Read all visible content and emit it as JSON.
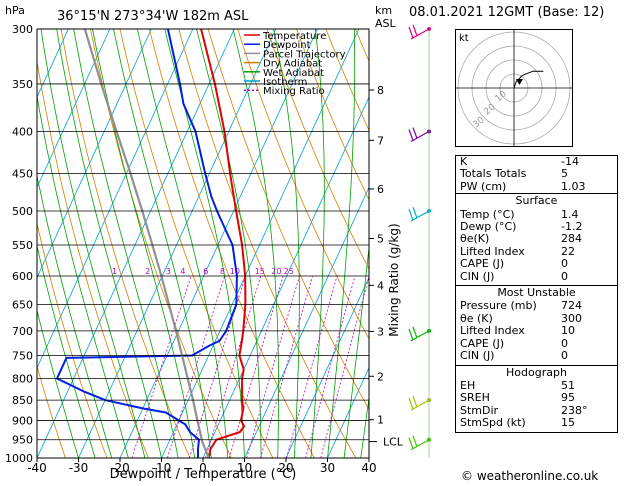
{
  "header": {
    "location": "36°15'N 273°34'W 182m ASL",
    "date": "08.01.2021 12GMT (Base: 12)",
    "hpa_label": "hPa",
    "km_label": "km",
    "asl_label": "ASL"
  },
  "legend": [
    {
      "label": "Temperature",
      "color": "#e00000",
      "dash": ""
    },
    {
      "label": "Dewpoint",
      "color": "#0020e0",
      "dash": ""
    },
    {
      "label": "Parcel Trajectory",
      "color": "#909090",
      "dash": ""
    },
    {
      "label": "Dry Adiabat",
      "color": "#d08000",
      "dash": ""
    },
    {
      "label": "Wet Adiabat",
      "color": "#00a000",
      "dash": ""
    },
    {
      "label": "Isotherm",
      "color": "#00a0d0",
      "dash": ""
    },
    {
      "label": "Mixing Ratio",
      "color": "#c000c0",
      "dash": "2,2"
    }
  ],
  "chart_data": {
    "type": "line",
    "xlabel": "Dewpoint / Temperature (°C)",
    "ylabel": "Mixing Ratio (g/kg)",
    "xlim": [
      -40,
      40
    ],
    "pressure_levels": [
      300,
      350,
      400,
      450,
      500,
      550,
      600,
      650,
      700,
      750,
      800,
      850,
      900,
      950,
      1000
    ],
    "x_ticks": [
      -40,
      -30,
      -20,
      -10,
      0,
      10,
      20,
      30,
      40
    ],
    "km_ticks": [
      {
        "km": "8",
        "p": 356
      },
      {
        "km": "7",
        "p": 410
      },
      {
        "km": "6",
        "p": 470
      },
      {
        "km": "5",
        "p": 540
      },
      {
        "km": "4",
        "p": 616
      },
      {
        "km": "3",
        "p": 701
      },
      {
        "km": "2",
        "p": 795
      },
      {
        "km": "1",
        "p": 898
      }
    ],
    "lcl": {
      "label": "LCL",
      "p": 955
    },
    "mixing_ratio_labels": [
      {
        "label": "1",
        "p": 600,
        "t": -41.5
      },
      {
        "label": "2",
        "p": 600,
        "t": -33.5
      },
      {
        "label": "3",
        "p": 600,
        "t": -28.5
      },
      {
        "label": "4",
        "p": 600,
        "t": -25
      },
      {
        "label": "6",
        "p": 600,
        "t": -19.5
      },
      {
        "label": "8",
        "p": 600,
        "t": -15.5
      },
      {
        "label": "10",
        "p": 600,
        "t": -12.5
      },
      {
        "label": "15",
        "p": 600,
        "t": -6.5
      },
      {
        "label": "20",
        "p": 600,
        "t": -2.5
      },
      {
        "label": "25",
        "p": 600,
        "t": 0.5
      }
    ],
    "series": [
      {
        "name": "Temperature",
        "color": "#e00000",
        "points": [
          [
            1000,
            1.4
          ],
          [
            975,
            0.8
          ],
          [
            950,
            1.2
          ],
          [
            930,
            6
          ],
          [
            915,
            6.4
          ],
          [
            900,
            5
          ],
          [
            870,
            4.2
          ],
          [
            850,
            3
          ],
          [
            800,
            0.6
          ],
          [
            780,
            0
          ],
          [
            750,
            -2.6
          ],
          [
            720,
            -3.6
          ],
          [
            700,
            -4.4
          ],
          [
            650,
            -6.8
          ],
          [
            600,
            -10
          ],
          [
            550,
            -14.2
          ],
          [
            500,
            -19.4
          ],
          [
            450,
            -25
          ],
          [
            400,
            -31
          ],
          [
            350,
            -38.6
          ],
          [
            300,
            -48
          ]
        ]
      },
      {
        "name": "Dewpoint",
        "color": "#0020e0",
        "points": [
          [
            1000,
            -1.2
          ],
          [
            975,
            -2.2
          ],
          [
            950,
            -3
          ],
          [
            930,
            -6
          ],
          [
            910,
            -8
          ],
          [
            900,
            -10
          ],
          [
            880,
            -14
          ],
          [
            870,
            -20
          ],
          [
            850,
            -30
          ],
          [
            830,
            -36
          ],
          [
            800,
            -44
          ],
          [
            770,
            -44
          ],
          [
            755,
            -44
          ],
          [
            750,
            -14
          ],
          [
            730,
            -11
          ],
          [
            720,
            -9
          ],
          [
            700,
            -8.5
          ],
          [
            650,
            -9
          ],
          [
            600,
            -12
          ],
          [
            550,
            -16.5
          ],
          [
            500,
            -24
          ],
          [
            480,
            -27
          ],
          [
            450,
            -31
          ],
          [
            400,
            -38
          ],
          [
            370,
            -44
          ],
          [
            350,
            -47
          ],
          [
            300,
            -56
          ]
        ]
      },
      {
        "name": "Parcel Trajectory",
        "color": "#909090",
        "points": [
          [
            1000,
            1.4
          ],
          [
            955,
            -2
          ],
          [
            900,
            -5.5
          ],
          [
            850,
            -8.8
          ],
          [
            800,
            -12.5
          ],
          [
            750,
            -16.4
          ],
          [
            700,
            -20.6
          ],
          [
            650,
            -25.2
          ],
          [
            600,
            -30.2
          ],
          [
            550,
            -35.8
          ],
          [
            500,
            -42
          ],
          [
            450,
            -49
          ],
          [
            400,
            -57
          ],
          [
            350,
            -66
          ],
          [
            300,
            -76
          ]
        ]
      }
    ],
    "wind_barbs": [
      {
        "p": 300,
        "color": "#e0007a"
      },
      {
        "p": 400,
        "color": "#8000a0"
      },
      {
        "p": 500,
        "color": "#00b0c0"
      },
      {
        "p": 700,
        "color": "#00b000"
      },
      {
        "p": 850,
        "color": "#a0c000"
      },
      {
        "p": 950,
        "color": "#40c000"
      }
    ]
  },
  "hodograph": {
    "label": "kt",
    "ring_labels": [
      "10",
      "20",
      "30"
    ],
    "trace": [
      [
        0,
        0
      ],
      [
        1,
        3
      ],
      [
        4,
        6
      ],
      [
        9,
        8
      ],
      [
        14,
        8
      ]
    ]
  },
  "indices": {
    "rows": [
      {
        "k": "K",
        "v": "-14"
      },
      {
        "k": "Totals Totals",
        "v": "5"
      },
      {
        "k": "PW (cm)",
        "v": "1.03"
      }
    ]
  },
  "surface": {
    "title": "Surface",
    "rows": [
      {
        "k": "Temp (°C)",
        "v": "1.4"
      },
      {
        "k": "Dewp (°C)",
        "v": "-1.2"
      },
      {
        "k": "θe(K)",
        "v": "284"
      },
      {
        "k": "Lifted Index",
        "v": "22"
      },
      {
        "k": "CAPE (J)",
        "v": "0"
      },
      {
        "k": "CIN (J)",
        "v": "0"
      }
    ]
  },
  "most_unstable": {
    "title": "Most Unstable",
    "rows": [
      {
        "k": "Pressure (mb)",
        "v": "724"
      },
      {
        "k": "θe (K)",
        "v": "300"
      },
      {
        "k": "Lifted Index",
        "v": "10"
      },
      {
        "k": "CAPE (J)",
        "v": "0"
      },
      {
        "k": "CIN (J)",
        "v": "0"
      }
    ]
  },
  "hodograph_table": {
    "title": "Hodograph",
    "rows": [
      {
        "k": "EH",
        "v": "51"
      },
      {
        "k": "SREH",
        "v": "95"
      },
      {
        "k": "StmDir",
        "v": "238°"
      },
      {
        "k": "StmSpd (kt)",
        "v": "15"
      }
    ]
  },
  "footer": {
    "copyright": "© weatheronline.co.uk"
  }
}
